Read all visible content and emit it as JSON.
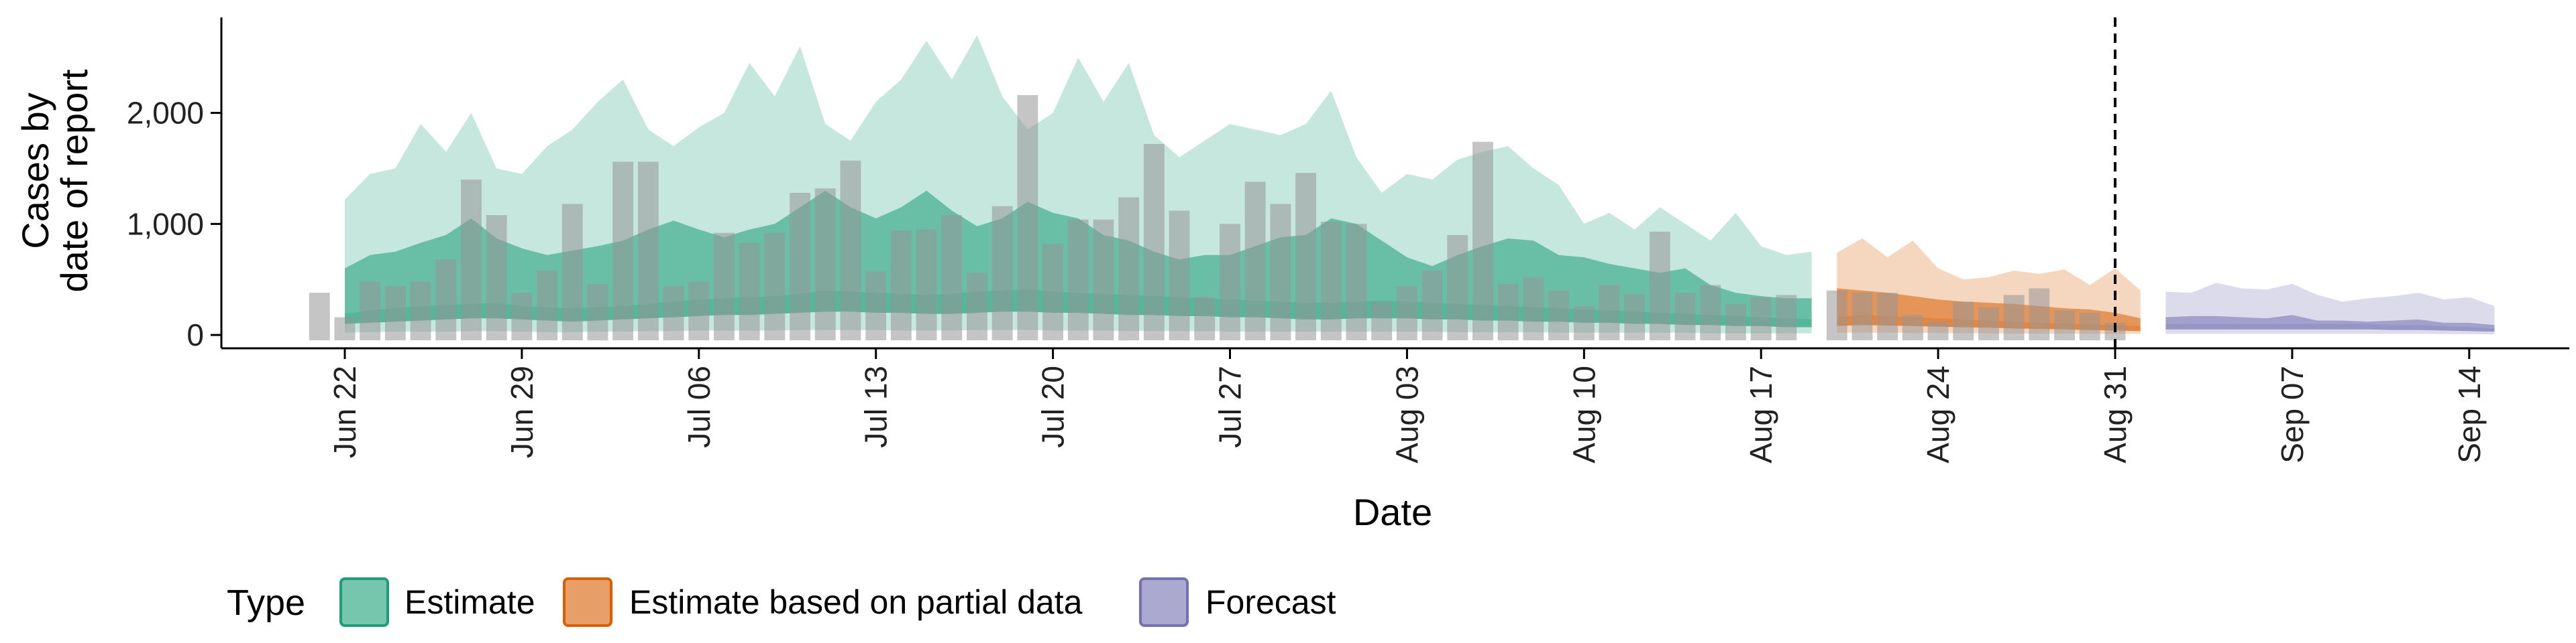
{
  "chart_data": {
    "type": "bar",
    "title": "",
    "xlabel": "Date",
    "ylabel_lines": [
      "Cases by",
      "date of report"
    ],
    "x_ticks": [
      "Jun 22",
      "Jun 29",
      "Jul 06",
      "Jul 13",
      "Jul 20",
      "Jul 27",
      "Aug 03",
      "Aug 10",
      "Aug 17",
      "Aug 24",
      "Aug 31",
      "Sep 07",
      "Sep 14"
    ],
    "y_ticks": [
      "0",
      "1,000",
      "2,000"
    ],
    "y_tick_values": [
      0,
      1000,
      2000
    ],
    "ylim": [
      -120,
      2860
    ],
    "x_start": "2020-06-21",
    "forecast_date": "Aug 31",
    "colors": {
      "Estimate": "#1b9e77",
      "Estimate based on partial data": "#d95f02",
      "Forecast": "#7570b3",
      "bars": "#9e9e9e",
      "axis": "#000000"
    },
    "reported_cases": [
      380,
      160,
      480,
      440,
      480,
      680,
      1400,
      1080,
      380,
      580,
      1180,
      460,
      1560,
      1560,
      440,
      480,
      920,
      830,
      920,
      1280,
      1320,
      1570,
      570,
      940,
      950,
      1080,
      560,
      1160,
      2160,
      820,
      1040,
      1040,
      1240,
      1720,
      1120,
      340,
      1000,
      1380,
      1180,
      1460,
      1020,
      1000,
      300,
      440,
      580,
      900,
      1740,
      460,
      520,
      400,
      260,
      450,
      370,
      930,
      380,
      450,
      280,
      340,
      360,
      0,
      400,
      380,
      380,
      180,
      120,
      300,
      250,
      360,
      420,
      220,
      200,
      110
    ],
    "series": [
      {
        "name": "Estimate",
        "start_day": 1,
        "median": [
          190,
          220,
          240,
          260,
          270,
          280,
          290,
          260,
          250,
          240,
          250,
          260,
          280,
          300,
          320,
          330,
          340,
          350,
          370,
          400,
          390,
          380,
          370,
          360,
          370,
          390,
          400,
          410,
          390,
          380,
          370,
          360,
          350,
          340,
          330,
          320,
          310,
          300,
          290,
          290,
          300,
          310,
          300,
          290,
          280,
          270,
          260,
          250,
          240,
          230,
          220,
          210,
          200,
          190,
          180,
          170,
          160,
          150,
          140
        ],
        "inner_low": [
          100,
          110,
          120,
          130,
          140,
          150,
          150,
          140,
          130,
          120,
          130,
          140,
          150,
          160,
          170,
          180,
          180,
          190,
          200,
          210,
          210,
          200,
          200,
          190,
          190,
          200,
          210,
          210,
          200,
          200,
          190,
          180,
          180,
          170,
          170,
          160,
          160,
          150,
          140,
          140,
          150,
          150,
          150,
          140,
          140,
          130,
          130,
          120,
          120,
          110,
          110,
          100,
          100,
          90,
          90,
          80,
          80,
          70,
          70
        ],
        "inner_high": [
          600,
          720,
          750,
          830,
          900,
          1050,
          870,
          780,
          720,
          760,
          800,
          850,
          950,
          1030,
          950,
          880,
          950,
          1000,
          1150,
          1300,
          1150,
          1050,
          1150,
          1300,
          1120,
          980,
          1050,
          1200,
          1100,
          1050,
          900,
          850,
          750,
          680,
          720,
          720,
          800,
          880,
          900,
          1050,
          1000,
          850,
          700,
          620,
          720,
          800,
          870,
          850,
          720,
          700,
          640,
          600,
          560,
          600,
          450,
          380,
          350,
          330,
          330
        ],
        "outer_low": [
          20,
          25,
          30,
          30,
          30,
          35,
          35,
          30,
          25,
          25,
          30,
          30,
          35,
          35,
          40,
          40,
          40,
          40,
          45,
          45,
          45,
          45,
          40,
          40,
          40,
          45,
          45,
          45,
          40,
          40,
          40,
          35,
          35,
          35,
          35,
          30,
          30,
          30,
          30,
          30,
          30,
          30,
          30,
          30,
          25,
          25,
          25,
          25,
          20,
          20,
          20,
          20,
          20,
          20,
          15,
          15,
          15,
          15,
          15
        ],
        "outer_high": [
          1220,
          1450,
          1500,
          1900,
          1650,
          2000,
          1500,
          1450,
          1700,
          1850,
          2100,
          2300,
          1850,
          1700,
          1870,
          2000,
          2450,
          2150,
          2600,
          1900,
          1750,
          2100,
          2300,
          2650,
          2300,
          2700,
          2150,
          1850,
          2000,
          2500,
          2100,
          2450,
          1800,
          1600,
          1750,
          1900,
          1850,
          1800,
          1900,
          2200,
          1600,
          1280,
          1450,
          1400,
          1580,
          1650,
          1700,
          1500,
          1350,
          1000,
          1100,
          950,
          1150,
          1000,
          850,
          1100,
          800,
          720,
          750
        ],
        "rgb": "27,158,119"
      },
      {
        "name": "Estimate based on partial data",
        "start_day": 60,
        "median": [
          160,
          180,
          170,
          160,
          150,
          140,
          130,
          120,
          110,
          100,
          95,
          90,
          80
        ],
        "inner_low": [
          80,
          90,
          85,
          80,
          75,
          70,
          65,
          60,
          55,
          50,
          45,
          40,
          35
        ],
        "inner_high": [
          420,
          400,
          380,
          350,
          320,
          300,
          290,
          280,
          260,
          240,
          230,
          200,
          150
        ],
        "outer_low": [
          20,
          20,
          20,
          18,
          18,
          16,
          15,
          14,
          13,
          12,
          11,
          10,
          10
        ],
        "outer_high": [
          740,
          870,
          700,
          850,
          600,
          500,
          520,
          580,
          550,
          590,
          450,
          600,
          400
        ],
        "rgb": "217,95,2"
      },
      {
        "name": "Forecast",
        "start_day": 73,
        "median": [
          100,
          100,
          100,
          100,
          100,
          100,
          100,
          100,
          100,
          90,
          90,
          80,
          70,
          60
        ],
        "inner_low": [
          50,
          50,
          50,
          50,
          50,
          50,
          50,
          50,
          50,
          45,
          45,
          40,
          35,
          30
        ],
        "inner_high": [
          160,
          170,
          170,
          160,
          150,
          180,
          130,
          130,
          120,
          130,
          140,
          110,
          110,
          90
        ],
        "outer_low": [
          10,
          10,
          10,
          10,
          10,
          10,
          10,
          10,
          10,
          10,
          10,
          8,
          8,
          6
        ],
        "outer_high": [
          390,
          380,
          470,
          420,
          410,
          460,
          360,
          300,
          330,
          350,
          380,
          320,
          340,
          260
        ],
        "rgb": "117,112,179"
      }
    ],
    "legend": {
      "title": "Type",
      "position": "bottom",
      "entries": [
        "Estimate",
        "Estimate based on partial data",
        "Forecast"
      ]
    },
    "grid": false
  }
}
